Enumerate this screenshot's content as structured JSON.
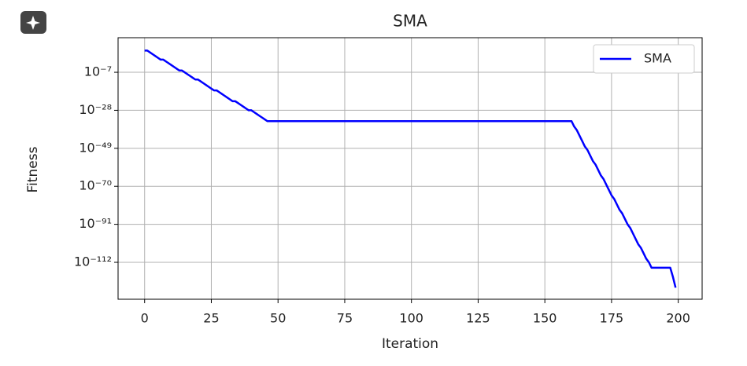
{
  "chart_data": {
    "type": "line",
    "title": "SMA",
    "xlabel": "Iteration",
    "ylabel": "Fitness",
    "x": [
      0,
      1,
      2,
      3,
      4,
      5,
      6,
      7,
      8,
      9,
      10,
      11,
      12,
      13,
      14,
      15,
      16,
      17,
      18,
      19,
      20,
      21,
      22,
      23,
      24,
      25,
      26,
      27,
      28,
      29,
      30,
      31,
      32,
      33,
      34,
      35,
      36,
      37,
      38,
      39,
      40,
      41,
      42,
      43,
      44,
      45,
      46,
      47,
      48,
      49,
      50,
      51,
      52,
      53,
      54,
      55,
      56,
      57,
      58,
      59,
      60,
      61,
      62,
      63,
      64,
      65,
      66,
      67,
      68,
      69,
      70,
      71,
      72,
      73,
      74,
      75,
      76,
      77,
      78,
      79,
      80,
      81,
      82,
      83,
      84,
      85,
      86,
      87,
      88,
      89,
      90,
      91,
      92,
      93,
      94,
      95,
      96,
      97,
      98,
      99,
      100,
      101,
      102,
      103,
      104,
      105,
      106,
      107,
      108,
      109,
      110,
      111,
      112,
      113,
      114,
      115,
      116,
      117,
      118,
      119,
      120,
      121,
      122,
      123,
      124,
      125,
      126,
      127,
      128,
      129,
      130,
      131,
      132,
      133,
      134,
      135,
      136,
      137,
      138,
      139,
      140,
      141,
      142,
      143,
      144,
      145,
      146,
      147,
      148,
      149,
      150,
      151,
      152,
      153,
      154,
      155,
      156,
      157,
      158,
      159,
      160,
      161,
      162,
      163,
      164,
      165,
      166,
      167,
      168,
      169,
      170,
      171,
      172,
      173,
      174,
      175,
      176,
      177,
      178,
      179,
      180,
      181,
      182,
      183,
      184,
      185,
      186,
      187,
      188,
      189,
      190,
      191,
      192,
      193,
      194,
      195,
      196,
      197,
      198,
      199
    ],
    "series": [
      {
        "name": "SMA",
        "color": "#0000ff",
        "values": [
          100000.0,
          100000.0,
          10000.0,
          1000.0,
          100.0,
          10.0,
          1.0,
          1.0,
          0.1,
          0.01,
          0.001,
          0.0001,
          1e-05,
          1e-06,
          1e-06,
          1e-07,
          1e-08,
          1e-09,
          1e-10,
          1e-11,
          1e-11,
          1e-12,
          1e-13,
          1e-14,
          1e-15,
          1e-16,
          1e-17,
          1e-17,
          1e-18,
          1e-19,
          1e-20,
          1e-21,
          1e-22,
          1e-23,
          1e-23,
          1e-24,
          1e-25,
          1e-26,
          1e-27,
          1e-28,
          1e-28,
          1e-29,
          1e-30,
          1e-31,
          1e-32,
          1e-33,
          1e-34,
          1e-34,
          1e-34,
          1e-34,
          1e-34,
          1e-34,
          1e-34,
          1e-34,
          1e-34,
          1e-34,
          1e-34,
          1e-34,
          1e-34,
          1e-34,
          1e-34,
          1e-34,
          1e-34,
          1e-34,
          1e-34,
          1e-34,
          1e-34,
          1e-34,
          1e-34,
          1e-34,
          1e-34,
          1e-34,
          1e-34,
          1e-34,
          1e-34,
          1e-34,
          1e-34,
          1e-34,
          1e-34,
          1e-34,
          1e-34,
          1e-34,
          1e-34,
          1e-34,
          1e-34,
          1e-34,
          1e-34,
          1e-34,
          1e-34,
          1e-34,
          1e-34,
          1e-34,
          1e-34,
          1e-34,
          1e-34,
          1e-34,
          1e-34,
          1e-34,
          1e-34,
          1e-34,
          1e-34,
          1e-34,
          1e-34,
          1e-34,
          1e-34,
          1e-34,
          1e-34,
          1e-34,
          1e-34,
          1e-34,
          1e-34,
          1e-34,
          1e-34,
          1e-34,
          1e-34,
          1e-34,
          1e-34,
          1e-34,
          1e-34,
          1e-34,
          1e-34,
          1e-34,
          1e-34,
          1e-34,
          1e-34,
          1e-34,
          1e-34,
          1e-34,
          1e-34,
          1e-34,
          1e-34,
          1e-34,
          1e-34,
          1e-34,
          1e-34,
          1e-34,
          1e-34,
          1e-34,
          1e-34,
          1e-34,
          1e-34,
          1e-34,
          1e-34,
          1e-34,
          1e-34,
          1e-34,
          1e-34,
          1e-34,
          1e-34,
          1e-34,
          1e-34,
          1e-34,
          1e-34,
          1e-34,
          1e-34,
          1e-34,
          1e-34,
          1e-34,
          1e-34,
          1e-34,
          1e-34,
          1e-37,
          1e-39,
          1e-42,
          1e-45,
          1e-48,
          1e-50,
          1e-53,
          1e-56,
          1e-58,
          1e-61,
          1e-64,
          1e-66,
          1e-69,
          1e-72,
          1e-75,
          1e-77,
          1e-80,
          1e-83,
          1e-85,
          1e-88,
          1e-91,
          1e-93,
          1e-96,
          1e-99,
          1e-102,
          1e-104,
          1e-107,
          1e-110,
          1e-112,
          1e-115,
          1e-115,
          1e-115,
          1e-115,
          1e-115,
          1e-115,
          1e-115,
          1e-115,
          1e-120,
          1e-126
        ]
      }
    ],
    "xlim": [
      -9.95,
      208.95
    ],
    "xticks": [
      0,
      25,
      50,
      75,
      100,
      125,
      150,
      175,
      200
    ],
    "ylim": [
      4e-133,
      1300000000000.0
    ],
    "ylog": true,
    "yticks": [
      {
        "value": 1e-07,
        "label": "10⁻⁷"
      },
      {
        "value": 1e-28,
        "label": "10⁻²⁸"
      },
      {
        "value": 1e-49,
        "label": "10⁻⁴⁹"
      },
      {
        "value": 1e-70,
        "label": "10⁻⁷⁰"
      },
      {
        "value": 1e-91,
        "label": "10⁻⁹¹"
      },
      {
        "value": 1e-112,
        "label": "10⁻¹¹²"
      }
    ],
    "grid": true,
    "legend": "upper right"
  }
}
